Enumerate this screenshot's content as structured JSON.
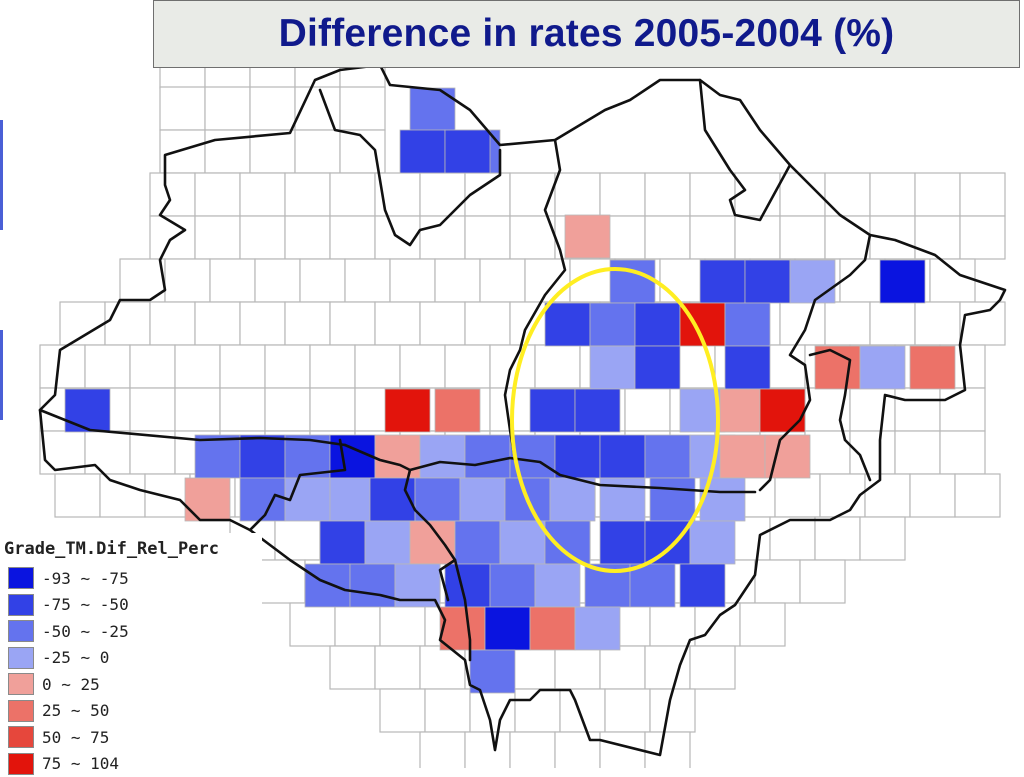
{
  "title": "Difference in rates 2005-2004 (%)",
  "legend": {
    "title": "Grade_TM.Dif_Rel_Perc",
    "classes": [
      {
        "label": "-93 ∼ -75",
        "color": "#0a14e0"
      },
      {
        "label": "-75 ∼ -50",
        "color": "#3241e6"
      },
      {
        "label": "-50 ∼ -25",
        "color": "#6473ee"
      },
      {
        "label": "-25 ∼ 0",
        "color": "#9aa5f4"
      },
      {
        "label": "0 ∼ 25",
        "color": "#f0a09a"
      },
      {
        "label": "25 ∼ 50",
        "color": "#ec7268"
      },
      {
        "label": "50 ∼ 75",
        "color": "#e6473c"
      },
      {
        "label": "75 ∼ 104",
        "color": "#e2140c"
      }
    ]
  },
  "map": {
    "grid_line_color": "#b8b8b8",
    "boundary_color": "#111111",
    "highlight_ellipse_color": "#ffee22"
  }
}
